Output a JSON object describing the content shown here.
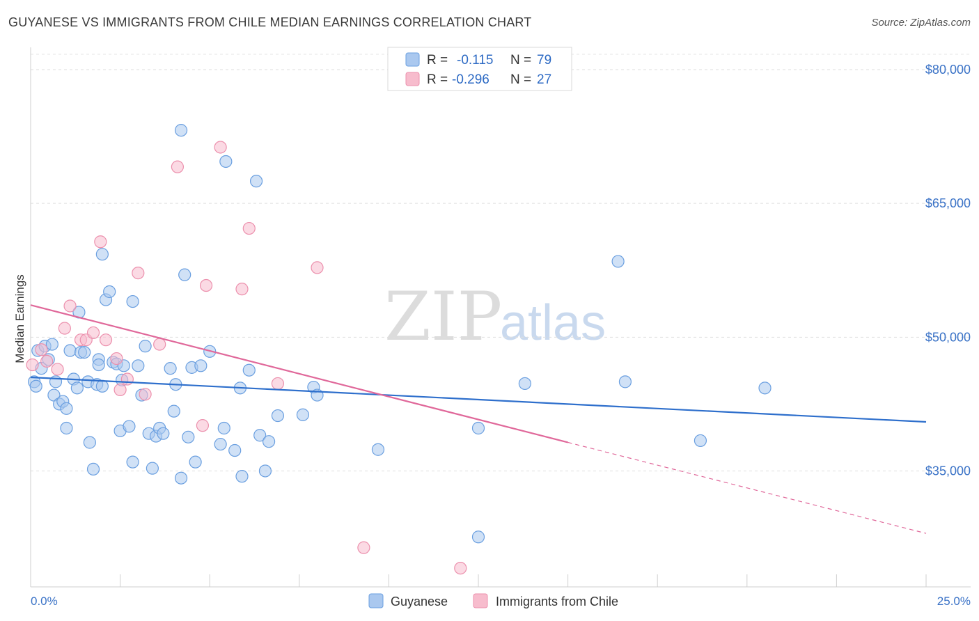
{
  "header": {
    "title": "GUYANESE VS IMMIGRANTS FROM CHILE MEDIAN EARNINGS CORRELATION CHART",
    "source": "Source: ZipAtlas.com"
  },
  "watermark": {
    "zip": "ZIP",
    "atlas": "atlas"
  },
  "legend_box": {
    "rows": [
      {
        "r_label": "R =",
        "r_value": "-0.115",
        "n_label": "N =",
        "n_value": "79"
      },
      {
        "r_label": "R =",
        "r_value": "-0.296",
        "n_label": "N =",
        "n_value": "27"
      }
    ]
  },
  "bottom_legend": [
    "Guyanese",
    "Immigrants from Chile"
  ],
  "chart_data": {
    "type": "scatter",
    "title": "GUYANESE VS IMMIGRANTS FROM CHILE MEDIAN EARNINGS CORRELATION CHART",
    "xlabel": "",
    "ylabel": "Median Earnings",
    "xlim": [
      0,
      25
    ],
    "ylim": [
      22000,
      82500
    ],
    "x_tick_labels": [
      "0.0%",
      "25.0%"
    ],
    "y_ticks": [
      35000,
      50000,
      65000,
      80000
    ],
    "y_tick_labels": [
      "$35,000",
      "$50,000",
      "$65,000",
      "$80,000"
    ],
    "grid": true,
    "legend_position": "top-center",
    "colors": {
      "guyanese_fill": "#aac8ef",
      "guyanese_stroke": "#6a9fe0",
      "guyanese_line": "#2e6fcc",
      "chile_fill": "#f7bccd",
      "chile_stroke": "#ec90ad",
      "chile_line": "#e0689a"
    },
    "series": [
      {
        "name": "Guyanese",
        "r": -0.115,
        "n": 79,
        "trend": {
          "x": [
            0,
            25
          ],
          "y": [
            45500,
            40500
          ]
        },
        "points": [
          [
            0.1,
            45000
          ],
          [
            0.15,
            44500
          ],
          [
            0.2,
            48500
          ],
          [
            0.3,
            46500
          ],
          [
            0.4,
            49000
          ],
          [
            0.5,
            47500
          ],
          [
            0.6,
            49200
          ],
          [
            0.65,
            43500
          ],
          [
            0.7,
            45000
          ],
          [
            0.8,
            42500
          ],
          [
            0.9,
            42800
          ],
          [
            1.0,
            39800
          ],
          [
            1.0,
            42000
          ],
          [
            1.1,
            48500
          ],
          [
            1.2,
            45300
          ],
          [
            1.3,
            44300
          ],
          [
            1.35,
            52800
          ],
          [
            1.4,
            48300
          ],
          [
            1.5,
            48300
          ],
          [
            1.6,
            45000
          ],
          [
            1.65,
            38200
          ],
          [
            1.75,
            35200
          ],
          [
            1.85,
            44700
          ],
          [
            1.9,
            47500
          ],
          [
            2.0,
            59300
          ],
          [
            2.0,
            44500
          ],
          [
            2.1,
            54200
          ],
          [
            2.2,
            55100
          ],
          [
            2.3,
            47200
          ],
          [
            2.4,
            47000
          ],
          [
            2.5,
            39500
          ],
          [
            2.55,
            45200
          ],
          [
            2.6,
            46800
          ],
          [
            2.75,
            40000
          ],
          [
            2.85,
            36000
          ],
          [
            2.85,
            54000
          ],
          [
            3.0,
            46800
          ],
          [
            3.1,
            43500
          ],
          [
            3.2,
            49000
          ],
          [
            3.3,
            39200
          ],
          [
            3.4,
            35300
          ],
          [
            3.5,
            38900
          ],
          [
            3.6,
            39800
          ],
          [
            3.7,
            39200
          ],
          [
            3.9,
            46500
          ],
          [
            4.0,
            41700
          ],
          [
            4.05,
            44700
          ],
          [
            4.2,
            73200
          ],
          [
            4.2,
            34200
          ],
          [
            4.3,
            57000
          ],
          [
            4.4,
            38800
          ],
          [
            4.5,
            46600
          ],
          [
            4.6,
            36000
          ],
          [
            4.75,
            46800
          ],
          [
            5.0,
            48400
          ],
          [
            5.3,
            38000
          ],
          [
            5.4,
            39800
          ],
          [
            5.45,
            69700
          ],
          [
            5.7,
            37300
          ],
          [
            5.85,
            44300
          ],
          [
            5.9,
            34400
          ],
          [
            6.1,
            46300
          ],
          [
            6.3,
            67500
          ],
          [
            6.4,
            39000
          ],
          [
            6.55,
            35000
          ],
          [
            6.65,
            38300
          ],
          [
            6.9,
            41200
          ],
          [
            7.6,
            41300
          ],
          [
            7.9,
            44400
          ],
          [
            8.0,
            43500
          ],
          [
            9.7,
            37400
          ],
          [
            12.5,
            27600
          ],
          [
            12.5,
            39800
          ],
          [
            13.8,
            44800
          ],
          [
            16.4,
            58500
          ],
          [
            16.6,
            45000
          ],
          [
            18.7,
            38400
          ],
          [
            20.5,
            44300
          ],
          [
            1.9,
            46900
          ]
        ]
      },
      {
        "name": "Immigrants from Chile",
        "r": -0.296,
        "n": 27,
        "trend": {
          "x": [
            0,
            15
          ],
          "y": [
            53600,
            38200
          ]
        },
        "trend_dashed": {
          "x": [
            15,
            25
          ],
          "y": [
            38200,
            28000
          ]
        },
        "points": [
          [
            0.05,
            46900
          ],
          [
            0.3,
            48600
          ],
          [
            0.45,
            47300
          ],
          [
            0.75,
            46400
          ],
          [
            0.95,
            51000
          ],
          [
            1.1,
            53500
          ],
          [
            1.4,
            49700
          ],
          [
            1.55,
            49700
          ],
          [
            1.75,
            50500
          ],
          [
            1.95,
            60700
          ],
          [
            2.1,
            49700
          ],
          [
            2.4,
            47600
          ],
          [
            2.5,
            44100
          ],
          [
            2.7,
            45300
          ],
          [
            3.0,
            57200
          ],
          [
            3.2,
            43600
          ],
          [
            3.6,
            49200
          ],
          [
            4.1,
            69100
          ],
          [
            4.8,
            40100
          ],
          [
            4.9,
            55800
          ],
          [
            5.3,
            71300
          ],
          [
            5.9,
            55400
          ],
          [
            6.1,
            62200
          ],
          [
            6.9,
            44800
          ],
          [
            8.0,
            57800
          ],
          [
            9.3,
            26400
          ],
          [
            12.0,
            24100
          ]
        ]
      }
    ]
  }
}
